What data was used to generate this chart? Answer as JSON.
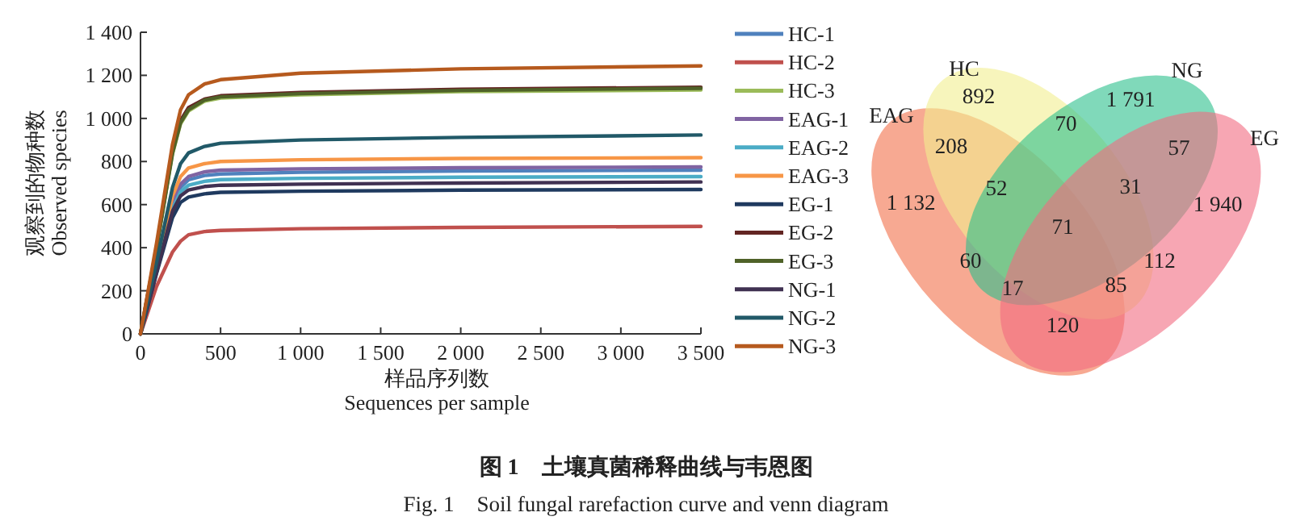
{
  "chart_data": [
    {
      "type": "line",
      "xlabel": "样品序列数\nSequences per sample",
      "ylabel": "观察到的物种数\nObserved species",
      "xlim": [
        0,
        3500
      ],
      "ylim": [
        0,
        1400
      ],
      "xticks": [
        0,
        500,
        {
          "value": 1000,
          "label": "1 000"
        },
        {
          "value": 1500,
          "label": "1 500"
        },
        {
          "value": 2000,
          "label": "2 000"
        },
        {
          "value": 2500,
          "label": "2 500"
        },
        {
          "value": 3000,
          "label": "3 000"
        },
        {
          "value": 3500,
          "label": "3 500"
        }
      ],
      "yticks": [
        0,
        200,
        400,
        600,
        800,
        {
          "value": 1000,
          "label": "1 000"
        },
        {
          "value": 1200,
          "label": "1 200"
        },
        {
          "value": 1400,
          "label": "1 400"
        }
      ],
      "grid": false,
      "legend": "right",
      "marker": "none",
      "line_style": "solid",
      "x": [
        0,
        100,
        200,
        250,
        300,
        400,
        500,
        1000,
        2000,
        3500
      ],
      "series": [
        {
          "name": "HC-1",
          "color": "#4f81bd",
          "values": [
            0,
            300,
            600,
            680,
            715,
            735,
            742,
            750,
            756,
            760
          ]
        },
        {
          "name": "HC-2",
          "color": "#c0504d",
          "values": [
            0,
            220,
            380,
            430,
            460,
            475,
            480,
            488,
            494,
            499
          ]
        },
        {
          "name": "HC-3",
          "color": "#9bbb59",
          "values": [
            0,
            395,
            835,
            975,
            1035,
            1080,
            1095,
            1110,
            1125,
            1132
          ]
        },
        {
          "name": "EAG-1",
          "color": "#8064a2",
          "values": [
            0,
            300,
            610,
            695,
            730,
            752,
            760,
            766,
            771,
            775
          ]
        },
        {
          "name": "EAG-2",
          "color": "#4bacc6",
          "values": [
            0,
            290,
            580,
            660,
            690,
            708,
            716,
            722,
            727,
            730
          ]
        },
        {
          "name": "EAG-3",
          "color": "#f79646",
          "values": [
            0,
            310,
            640,
            730,
            770,
            790,
            800,
            808,
            814,
            818
          ]
        },
        {
          "name": "EG-1",
          "color": "#1f3a5f",
          "values": [
            0,
            280,
            540,
            610,
            635,
            650,
            657,
            662,
            667,
            670
          ]
        },
        {
          "name": "EG-2",
          "color": "#632523",
          "values": [
            0,
            400,
            850,
            990,
            1050,
            1090,
            1105,
            1120,
            1135,
            1145
          ]
        },
        {
          "name": "EG-3",
          "color": "#4f6228",
          "values": [
            0,
            400,
            840,
            980,
            1040,
            1085,
            1100,
            1115,
            1130,
            1140
          ]
        },
        {
          "name": "NG-1",
          "color": "#403152",
          "values": [
            0,
            285,
            570,
            640,
            668,
            684,
            690,
            695,
            700,
            705
          ]
        },
        {
          "name": "NG-2",
          "color": "#215968",
          "values": [
            0,
            330,
            680,
            790,
            840,
            870,
            885,
            900,
            912,
            923
          ]
        },
        {
          "name": "NG-3",
          "color": "#b65a1e",
          "values": [
            0,
            420,
            880,
            1040,
            1110,
            1160,
            1180,
            1210,
            1230,
            1244
          ]
        }
      ],
      "annotations": [
        "图 1　土壤真菌稀释曲线与韦恩图",
        "Fig. 1　Soil fungal rarefaction curve and venn diagram"
      ]
    },
    {
      "type": "other",
      "categories": [
        "EAG",
        "HC",
        "NG",
        "EG"
      ],
      "colors": [
        "#f2704a",
        "#f2ee90",
        "#2bbf8c",
        "#f26a80"
      ],
      "annotations": [
        "1 132",
        "892",
        "1 791",
        "1 940",
        "208",
        "70",
        "57",
        "52",
        "31",
        "71",
        "60",
        "112",
        "17",
        "85",
        "120"
      ]
    }
  ]
}
